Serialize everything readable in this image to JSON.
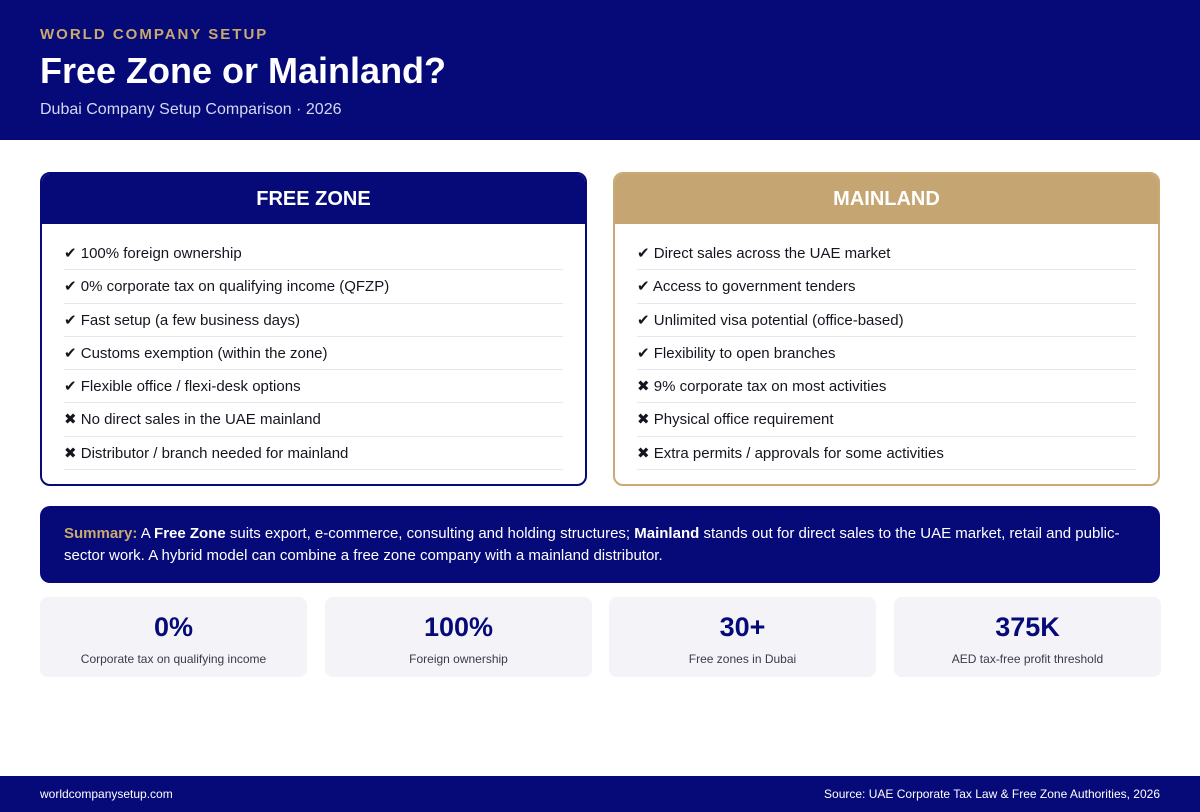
{
  "header": {
    "eyebrow": "WORLD COMPANY SETUP",
    "title": "Free Zone or Mainland?",
    "subtitle": "Dubai Company Setup Comparison · 2026"
  },
  "free_zone": {
    "title": "FREE ZONE",
    "items": [
      "✔ 100% foreign ownership",
      "✔ 0% corporate tax on qualifying income (QFZP)",
      "✔ Fast setup (a few business days)",
      "✔ Customs exemption (within the zone)",
      "✔ Flexible office / flexi-desk options",
      "✖ No direct sales in the UAE mainland",
      "✖ Distributor / branch needed for mainland"
    ]
  },
  "mainland": {
    "title": "MAINLAND",
    "items": [
      "✔ Direct sales across the UAE market",
      "✔ Access to government tenders",
      "✔ Unlimited visa potential (office-based)",
      "✔ Flexibility to open branches",
      "✖ 9% corporate tax on most activities",
      "✖ Physical office requirement",
      "✖ Extra permits / approvals for some activities"
    ]
  },
  "summary": {
    "label": "Summary:",
    "t1": " A ",
    "b1": "Free Zone",
    "t2": " suits export, e-commerce, consulting and holding structures; ",
    "b2": "Mainland",
    "t3": " stands out for direct sales to the UAE market, retail and public-sector work. A hybrid model can combine a free zone company with a mainland distributor."
  },
  "stats": [
    {
      "value": "0%",
      "caption": "Corporate tax on qualifying income"
    },
    {
      "value": "100%",
      "caption": "Foreign ownership"
    },
    {
      "value": "30+",
      "caption": "Free zones in Dubai"
    },
    {
      "value": "375K",
      "caption": "AED tax-free profit threshold"
    }
  ],
  "footer": {
    "site": "worldcompanysetup.com",
    "source": "Source: UAE Corporate Tax Law & Free Zone Authorities, 2026"
  },
  "colors": {
    "navy": "#050a78",
    "gold": "#c5a572",
    "stat_bg": "#f3f3f8"
  }
}
